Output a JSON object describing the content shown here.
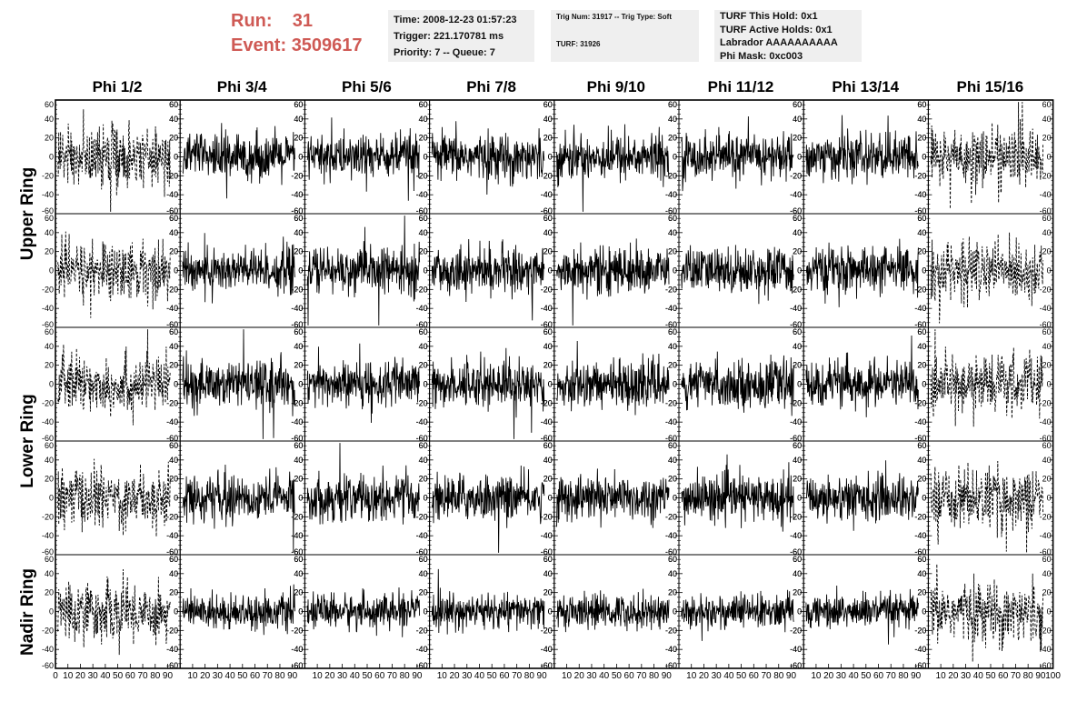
{
  "header": {
    "run_label": "Run:",
    "run_value": "31",
    "event_label": "Event:",
    "event_value": "3509617"
  },
  "info_time": {
    "time": "Time: 2008-12-23 01:57:23",
    "trigger": "Trigger: 221.170781 ms",
    "priority": "Priority: 7 -- Queue: 7"
  },
  "info_trig": {
    "trig": "Trig Num: 31917 -- Trig Type: Soft",
    "turf": "TURF: 31926"
  },
  "info_turf": {
    "hold": "TURF This Hold: 0x1",
    "active": "TURF Active Holds: 0x1",
    "labrador": "Labrador AAAAAAAAAA",
    "phimask": "Phi Mask: 0xc003"
  },
  "chart_data": {
    "type": "line",
    "columns": [
      "Phi 1/2",
      "Phi 3/4",
      "Phi 5/6",
      "Phi 7/8",
      "Phi 9/10",
      "Phi 11/12",
      "Phi 13/14",
      "Phi 15/16"
    ],
    "rows": [
      "Upper Ring",
      "Upper Ring",
      "Lower Ring",
      "Lower Ring",
      "Nadir Ring"
    ],
    "row_labels": [
      "Upper Ring",
      "Lower Ring",
      "Nadir Ring"
    ],
    "xlim": [
      0,
      100
    ],
    "ylim": [
      -60,
      60
    ],
    "y_ticks": [
      -60,
      -40,
      -20,
      0,
      20,
      40,
      60
    ],
    "x_tick_labels": [
      "0",
      "10",
      "20",
      "30",
      "40",
      "50",
      "60",
      "70",
      "80",
      "90",
      "100"
    ],
    "dashed_columns": [
      0,
      7
    ],
    "colors": {
      "trace": "#000000",
      "frame": "#000000"
    }
  }
}
